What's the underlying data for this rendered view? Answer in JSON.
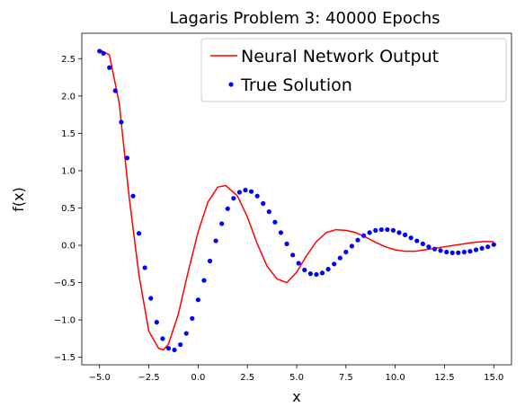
{
  "chart_data": {
    "type": "line",
    "title": "Lagaris Problem 3: 40000 Epochs",
    "xlabel": "x",
    "ylabel": "f(x)",
    "xlim": [
      -5.9,
      15.9
    ],
    "ylim": [
      -1.6,
      2.84
    ],
    "x_ticks": [
      -5.0,
      -2.5,
      0.0,
      2.5,
      5.0,
      7.5,
      10.0,
      12.5,
      15.0
    ],
    "x_tick_labels": [
      "−5.0",
      "−2.5",
      "0.0",
      "2.5",
      "5.0",
      "7.5",
      "10.0",
      "12.5",
      "15.0"
    ],
    "y_ticks": [
      -1.5,
      -1.0,
      -0.5,
      0.0,
      0.5,
      1.0,
      1.5,
      2.0,
      2.5
    ],
    "y_tick_labels": [
      "−1.5",
      "−1.0",
      "−0.5",
      "0.0",
      "0.5",
      "1.0",
      "1.5",
      "2.0",
      "2.5"
    ],
    "legend_position": "top-right",
    "grid": false,
    "series": [
      {
        "name": "Neural Network Output",
        "style": "line",
        "color": "#ff0000",
        "x": [
          -5.0,
          -4.5,
          -4.0,
          -3.5,
          -3.0,
          -2.5,
          -2.0,
          -1.75,
          -1.5,
          -1.0,
          -0.5,
          0.0,
          0.5,
          1.0,
          1.4,
          2.0,
          2.5,
          3.0,
          3.5,
          4.0,
          4.5,
          5.0,
          5.5,
          6.0,
          6.5,
          7.0,
          7.5,
          8.0,
          8.5,
          9.0,
          9.5,
          10.0,
          10.5,
          11.0,
          11.5,
          12.0,
          12.5,
          13.0,
          13.5,
          14.0,
          14.5,
          15.0
        ],
        "y": [
          2.62,
          2.55,
          1.9,
          0.65,
          -0.4,
          -1.15,
          -1.38,
          -1.4,
          -1.32,
          -0.92,
          -0.35,
          0.18,
          0.58,
          0.78,
          0.8,
          0.66,
          0.38,
          0.02,
          -0.28,
          -0.45,
          -0.5,
          -0.36,
          -0.14,
          0.05,
          0.17,
          0.21,
          0.2,
          0.17,
          0.11,
          0.04,
          -0.02,
          -0.06,
          -0.08,
          -0.08,
          -0.06,
          -0.04,
          -0.02,
          0.0,
          0.02,
          0.04,
          0.05,
          0.05
        ]
      },
      {
        "name": "True Solution",
        "style": "points",
        "color": "#0000ff",
        "x": [
          -5.0,
          -4.8,
          -4.5,
          -4.2,
          -3.9,
          -3.6,
          -3.3,
          -3.0,
          -2.7,
          -2.4,
          -2.1,
          -1.8,
          -1.5,
          -1.2,
          -0.9,
          -0.6,
          -0.3,
          0.0,
          0.3,
          0.6,
          0.9,
          1.2,
          1.5,
          1.8,
          2.1,
          2.4,
          2.7,
          3.0,
          3.3,
          3.6,
          3.9,
          4.2,
          4.5,
          4.8,
          5.1,
          5.4,
          5.7,
          6.0,
          6.3,
          6.6,
          6.9,
          7.2,
          7.5,
          7.8,
          8.1,
          8.4,
          8.7,
          9.0,
          9.3,
          9.6,
          9.9,
          10.2,
          10.5,
          10.8,
          11.1,
          11.4,
          11.7,
          12.0,
          12.3,
          12.6,
          12.9,
          13.2,
          13.5,
          13.8,
          14.1,
          14.4,
          14.7,
          15.0
        ],
        "y": [
          2.6,
          2.57,
          2.38,
          2.07,
          1.65,
          1.17,
          0.66,
          0.16,
          -0.3,
          -0.71,
          -1.03,
          -1.25,
          -1.38,
          -1.4,
          -1.33,
          -1.18,
          -0.98,
          -0.73,
          -0.47,
          -0.21,
          0.06,
          0.29,
          0.49,
          0.63,
          0.71,
          0.74,
          0.72,
          0.66,
          0.56,
          0.45,
          0.31,
          0.17,
          0.02,
          -0.13,
          -0.24,
          -0.33,
          -0.38,
          -0.39,
          -0.37,
          -0.32,
          -0.25,
          -0.17,
          -0.09,
          -0.01,
          0.07,
          0.13,
          0.17,
          0.2,
          0.21,
          0.21,
          0.2,
          0.17,
          0.14,
          0.1,
          0.06,
          0.02,
          -0.02,
          -0.05,
          -0.07,
          -0.09,
          -0.1,
          -0.1,
          -0.09,
          -0.08,
          -0.06,
          -0.04,
          -0.02,
          0.01
        ]
      }
    ]
  }
}
